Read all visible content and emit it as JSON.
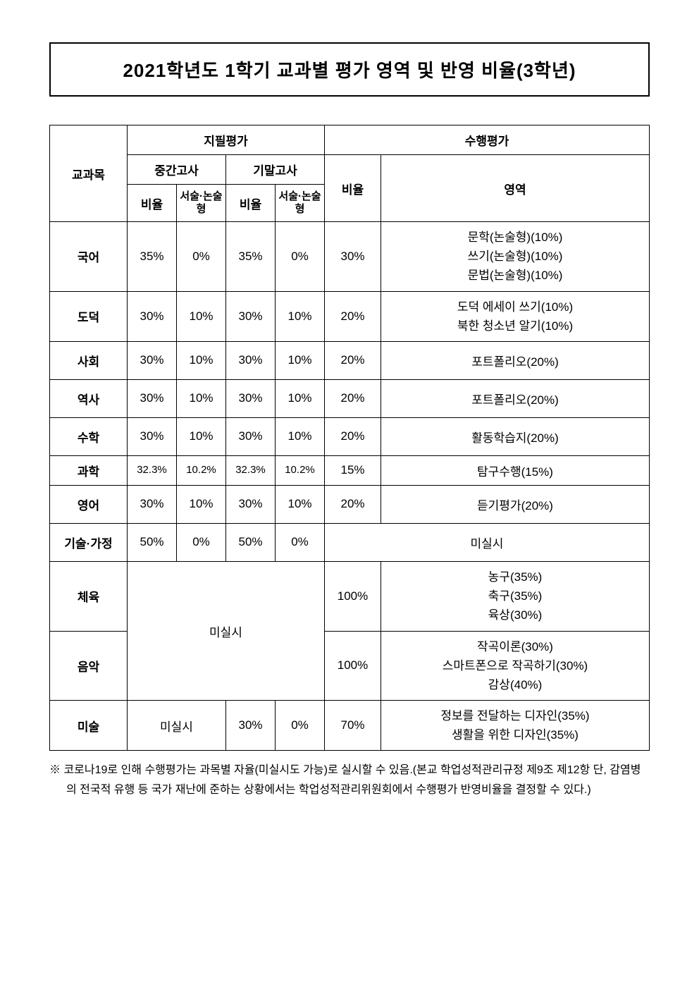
{
  "title": "2021학년도 1학기 교과별 평가 영역 및 반영 비율(3학년)",
  "headers": {
    "subject": "교과목",
    "written": "지필평가",
    "performance": "수행평가",
    "midterm": "중간고사",
    "final": "기말고사",
    "ratio": "비율",
    "essay": "서술·논술형",
    "area": "영역"
  },
  "rows": {
    "korean": {
      "subject": "국어",
      "mid_ratio": "35%",
      "mid_essay": "0%",
      "fin_ratio": "35%",
      "fin_essay": "0%",
      "perf_ratio": "30%",
      "area": "문학(논술형)(10%)\n쓰기(논술형)(10%)\n문법(논술형)(10%)"
    },
    "ethics": {
      "subject": "도덕",
      "mid_ratio": "30%",
      "mid_essay": "10%",
      "fin_ratio": "30%",
      "fin_essay": "10%",
      "perf_ratio": "20%",
      "area": "도덕 에세이 쓰기(10%)\n북한 청소년 알기(10%)"
    },
    "social": {
      "subject": "사회",
      "mid_ratio": "30%",
      "mid_essay": "10%",
      "fin_ratio": "30%",
      "fin_essay": "10%",
      "perf_ratio": "20%",
      "area": "포트폴리오(20%)"
    },
    "history": {
      "subject": "역사",
      "mid_ratio": "30%",
      "mid_essay": "10%",
      "fin_ratio": "30%",
      "fin_essay": "10%",
      "perf_ratio": "20%",
      "area": "포트폴리오(20%)"
    },
    "math": {
      "subject": "수학",
      "mid_ratio": "30%",
      "mid_essay": "10%",
      "fin_ratio": "30%",
      "fin_essay": "10%",
      "perf_ratio": "20%",
      "area": "활동학습지(20%)"
    },
    "science": {
      "subject": "과학",
      "mid_ratio": "32.3%",
      "mid_essay": "10.2%",
      "fin_ratio": "32.3%",
      "fin_essay": "10.2%",
      "perf_ratio": "15%",
      "area": "탐구수행(15%)"
    },
    "english": {
      "subject": "영어",
      "mid_ratio": "30%",
      "mid_essay": "10%",
      "fin_ratio": "30%",
      "fin_essay": "10%",
      "perf_ratio": "20%",
      "area": "듣기평가(20%)"
    },
    "tech": {
      "subject": "기술·가정",
      "mid_ratio": "50%",
      "mid_essay": "0%",
      "fin_ratio": "50%",
      "fin_essay": "0%",
      "merged_perf": "미실시"
    },
    "pe": {
      "subject": "체육",
      "perf_ratio": "100%",
      "area": "농구(35%)\n축구(35%)\n육상(30%)"
    },
    "music": {
      "subject": "음악",
      "perf_ratio": "100%",
      "area": "작곡이론(30%)\n스마트폰으로 작곡하기(30%)\n감상(40%)"
    },
    "not_conducted": "미실시",
    "art": {
      "subject": "미술",
      "mid_merged": "미실시",
      "fin_ratio": "30%",
      "fin_essay": "0%",
      "perf_ratio": "70%",
      "area": "정보를 전달하는 디자인(35%)\n생활을 위한 디자인(35%)"
    }
  },
  "footnote": "※ 코로나19로 인해 수행평가는 과목별 자율(미실시도 가능)로 실시할 수 있음.(본교 학업성적관리규정 제9조 제12항 단, 감염병의 전국적 유행 등 국가 재난에 준하는 상황에서는 학업성적관리위원회에서 수행평가 반영비율을 결정할 수 있다.)"
}
